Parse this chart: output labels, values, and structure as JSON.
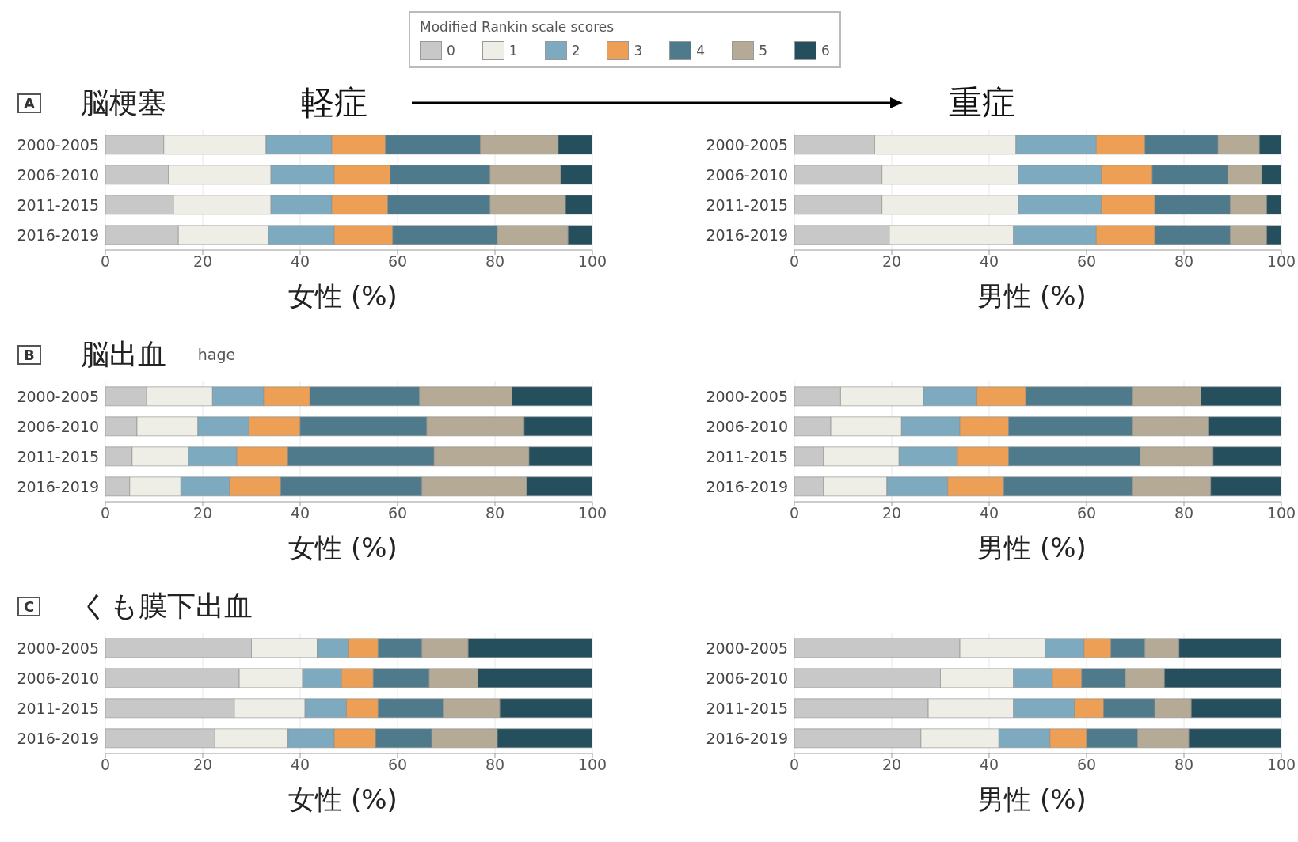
{
  "chart_data": [
    {
      "type": "bar",
      "orientation": "horizontal",
      "stacked": true,
      "title": "脳梗塞",
      "annotations": [
        "A",
        "軽症"
      ],
      "xlabel": "女性 (%)",
      "legend_title": "Modified Rankin scale scores",
      "legend": "top",
      "grid": "x",
      "categories": [
        "2000-2005",
        "2006-2010",
        "2011-2015",
        "2016-2019"
      ],
      "xlim": [
        0,
        100
      ],
      "xticks": [
        0,
        20,
        40,
        60,
        80,
        100
      ],
      "series": [
        {
          "name": "0",
          "color": "#c8c8c8",
          "values": [
            12,
            13,
            14,
            15
          ]
        },
        {
          "name": "1",
          "color": "#eeeee6",
          "values": [
            21,
            21,
            20,
            18.5
          ]
        },
        {
          "name": "2",
          "color": "#7eaabf",
          "values": [
            13.5,
            13,
            12.5,
            13.5
          ]
        },
        {
          "name": "3",
          "color": "#eda055",
          "values": [
            11,
            11.5,
            11.5,
            12
          ]
        },
        {
          "name": "4",
          "color": "#4f7a8c",
          "values": [
            19.5,
            20.5,
            21,
            21.5
          ]
        },
        {
          "name": "5",
          "color": "#b5aa95",
          "values": [
            16,
            14.5,
            15.5,
            14.5
          ]
        },
        {
          "name": "6",
          "color": "#264f5e",
          "values": [
            7,
            6.5,
            5.5,
            5
          ]
        }
      ]
    },
    {
      "type": "bar",
      "orientation": "horizontal",
      "stacked": true,
      "annotations": [
        "重症"
      ],
      "xlabel": "男性 (%)",
      "grid": "x",
      "categories": [
        "2000-2005",
        "2006-2010",
        "2011-2015",
        "2016-2019"
      ],
      "xlim": [
        0,
        100
      ],
      "xticks": [
        0,
        20,
        40,
        60,
        80,
        100
      ],
      "series": [
        {
          "color": "#c8c8c8",
          "values": [
            16.5,
            18,
            18,
            19.5
          ]
        },
        {
          "color": "#eeeee6",
          "values": [
            29,
            28,
            28,
            25.5
          ]
        },
        {
          "color": "#7eaabf",
          "values": [
            16.5,
            17,
            17,
            17
          ]
        },
        {
          "color": "#eda055",
          "values": [
            10,
            10.5,
            11,
            12
          ]
        },
        {
          "color": "#4f7a8c",
          "values": [
            15,
            15.5,
            15.5,
            15.5
          ]
        },
        {
          "color": "#b5aa95",
          "values": [
            8.5,
            7,
            7.5,
            7.5
          ]
        },
        {
          "color": "#264f5e",
          "values": [
            4.5,
            4,
            3,
            3
          ]
        }
      ]
    },
    {
      "type": "bar",
      "orientation": "horizontal",
      "stacked": true,
      "title": "脳出血",
      "annotations": [
        "B",
        "hage"
      ],
      "xlabel": "女性 (%)",
      "grid": "x",
      "categories": [
        "2000-2005",
        "2006-2010",
        "2011-2015",
        "2016-2019"
      ],
      "xlim": [
        0,
        100
      ],
      "xticks": [
        0,
        20,
        40,
        60,
        80,
        100
      ],
      "series": [
        {
          "color": "#c8c8c8",
          "values": [
            8.5,
            6.5,
            5.5,
            5
          ]
        },
        {
          "color": "#eeeee6",
          "values": [
            13.5,
            12.5,
            11.5,
            10.5
          ]
        },
        {
          "color": "#7eaabf",
          "values": [
            10.5,
            10.5,
            10,
            10
          ]
        },
        {
          "color": "#eda055",
          "values": [
            9.5,
            10.5,
            10.5,
            10.5
          ]
        },
        {
          "color": "#4f7a8c",
          "values": [
            22.5,
            26,
            30,
            29
          ]
        },
        {
          "color": "#b5aa95",
          "values": [
            19,
            20,
            19.5,
            21.5
          ]
        },
        {
          "color": "#264f5e",
          "values": [
            16.5,
            14,
            13,
            13.5
          ]
        }
      ]
    },
    {
      "type": "bar",
      "orientation": "horizontal",
      "stacked": true,
      "xlabel": "男性 (%)",
      "grid": "x",
      "categories": [
        "2000-2005",
        "2006-2010",
        "2011-2015",
        "2016-2019"
      ],
      "xlim": [
        0,
        100
      ],
      "xticks": [
        0,
        20,
        40,
        60,
        80,
        100
      ],
      "series": [
        {
          "color": "#c8c8c8",
          "values": [
            9.5,
            7.5,
            6,
            6
          ]
        },
        {
          "color": "#eeeee6",
          "values": [
            17,
            14.5,
            15.5,
            13
          ]
        },
        {
          "color": "#7eaabf",
          "values": [
            11,
            12,
            12,
            12.5
          ]
        },
        {
          "color": "#eda055",
          "values": [
            10,
            10,
            10.5,
            11.5
          ]
        },
        {
          "color": "#4f7a8c",
          "values": [
            22,
            25.5,
            27,
            26.5
          ]
        },
        {
          "color": "#b5aa95",
          "values": [
            14,
            15.5,
            15,
            16
          ]
        },
        {
          "color": "#264f5e",
          "values": [
            16.5,
            15,
            14,
            14.5
          ]
        }
      ]
    },
    {
      "type": "bar",
      "orientation": "horizontal",
      "stacked": true,
      "title": "くも膜下出血",
      "annotations": [
        "C"
      ],
      "xlabel": "女性 (%)",
      "grid": "x",
      "categories": [
        "2000-2005",
        "2006-2010",
        "2011-2015",
        "2016-2019"
      ],
      "xlim": [
        0,
        100
      ],
      "xticks": [
        0,
        20,
        40,
        60,
        80,
        100
      ],
      "series": [
        {
          "color": "#c8c8c8",
          "values": [
            30,
            27.5,
            26.5,
            22.5
          ]
        },
        {
          "color": "#eeeee6",
          "values": [
            13.5,
            13,
            14.5,
            15
          ]
        },
        {
          "color": "#7eaabf",
          "values": [
            6.5,
            8,
            8.5,
            9.5
          ]
        },
        {
          "color": "#eda055",
          "values": [
            6,
            6.5,
            6.5,
            8.5
          ]
        },
        {
          "color": "#4f7a8c",
          "values": [
            9,
            11.5,
            13.5,
            11.5
          ]
        },
        {
          "color": "#b5aa95",
          "values": [
            9.5,
            10,
            11.5,
            13.5
          ]
        },
        {
          "color": "#264f5e",
          "values": [
            25.5,
            23.5,
            19,
            19.5
          ]
        }
      ]
    },
    {
      "type": "bar",
      "orientation": "horizontal",
      "stacked": true,
      "xlabel": "男性 (%)",
      "grid": "x",
      "categories": [
        "2000-2005",
        "2006-2010",
        "2011-2015",
        "2016-2019"
      ],
      "xlim": [
        0,
        100
      ],
      "xticks": [
        0,
        20,
        40,
        60,
        80,
        100
      ],
      "series": [
        {
          "color": "#c8c8c8",
          "values": [
            34,
            30,
            27.5,
            26
          ]
        },
        {
          "color": "#eeeee6",
          "values": [
            17.5,
            15,
            17.5,
            16
          ]
        },
        {
          "color": "#7eaabf",
          "values": [
            8,
            8,
            12.5,
            10.5
          ]
        },
        {
          "color": "#eda055",
          "values": [
            5.5,
            6,
            6,
            7.5
          ]
        },
        {
          "color": "#4f7a8c",
          "values": [
            7,
            9,
            10.5,
            10.5
          ]
        },
        {
          "color": "#b5aa95",
          "values": [
            7,
            8,
            7.5,
            10.5
          ]
        },
        {
          "color": "#264f5e",
          "values": [
            21,
            24,
            18.5,
            19
          ]
        }
      ]
    }
  ]
}
